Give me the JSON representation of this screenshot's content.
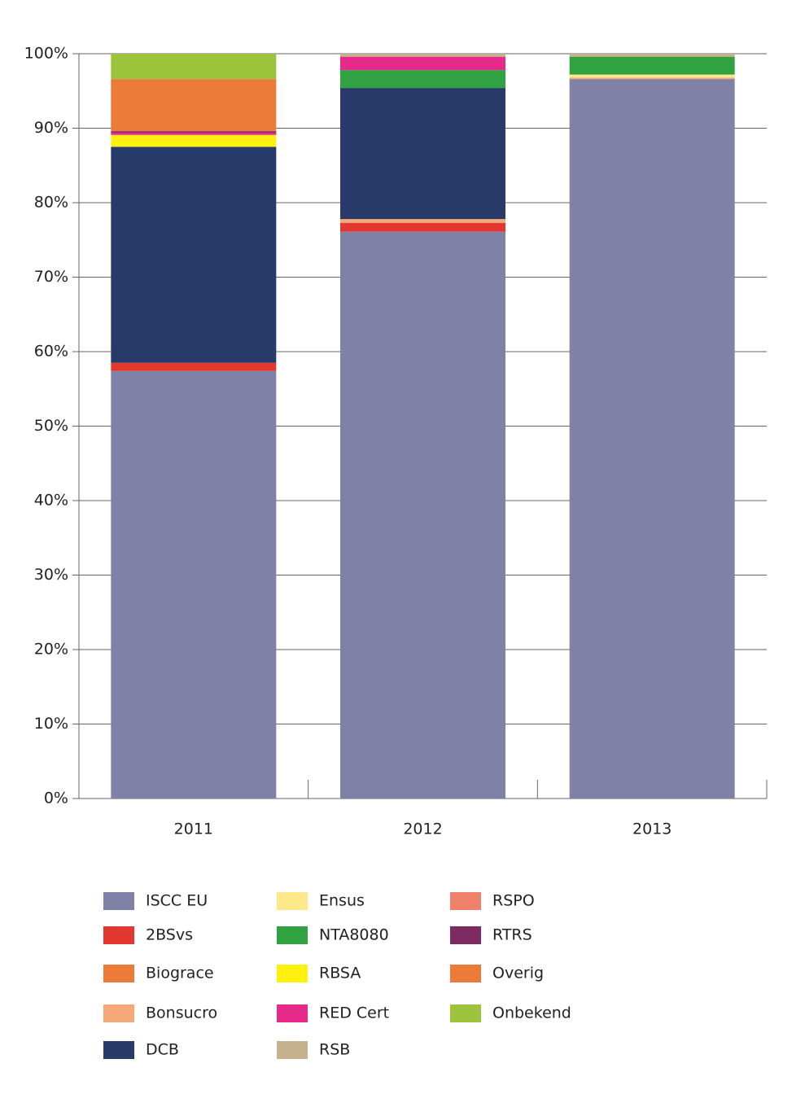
{
  "chart_data": {
    "type": "stacked_bar",
    "categories": [
      "2011",
      "2012",
      "2013"
    ],
    "ylim": [
      0,
      100
    ],
    "yticks": [
      {
        "value": 0,
        "label": "0%"
      },
      {
        "value": 10,
        "label": "10%"
      },
      {
        "value": 20,
        "label": "20%"
      },
      {
        "value": 30,
        "label": "30%"
      },
      {
        "value": 40,
        "label": "40%"
      },
      {
        "value": 50,
        "label": "50%"
      },
      {
        "value": 60,
        "label": "60%"
      },
      {
        "value": 70,
        "label": "70%"
      },
      {
        "value": 80,
        "label": "80%"
      },
      {
        "value": 90,
        "label": "90%"
      },
      {
        "value": 100,
        "label": "100%"
      }
    ],
    "grid": true,
    "series": [
      {
        "name": "ISCC EU",
        "color": "#7f81a6",
        "values": [
          57.4,
          76.1,
          96.6
        ]
      },
      {
        "name": "2BSvs",
        "color": "#e2382f",
        "values": [
          1.1,
          1.2,
          0
        ]
      },
      {
        "name": "Biograce",
        "color": "#ec7a38",
        "values": [
          0,
          0,
          0
        ]
      },
      {
        "name": "Bonsucro",
        "color": "#f6a878",
        "values": [
          0,
          0.5,
          0.2
        ]
      },
      {
        "name": "DCB",
        "color": "#283a6a",
        "values": [
          29.0,
          17.6,
          0
        ]
      },
      {
        "name": "Ensus",
        "color": "#fde98a",
        "values": [
          0,
          0,
          0.4
        ]
      },
      {
        "name": "NTA8080",
        "color": "#30a241",
        "values": [
          0,
          2.4,
          2.4
        ]
      },
      {
        "name": "RBSA",
        "color": "#fef010",
        "values": [
          1.6,
          0,
          0
        ]
      },
      {
        "name": "RED Cert",
        "color": "#e62a8a",
        "values": [
          0.3,
          1.8,
          0
        ]
      },
      {
        "name": "RSB",
        "color": "#c6b18f",
        "values": [
          0,
          0.4,
          0.4
        ]
      },
      {
        "name": "RSPO",
        "color": "#ee8169",
        "values": [
          0,
          0,
          0
        ]
      },
      {
        "name": "RTRS",
        "color": "#7d2b62",
        "values": [
          0.2,
          0,
          0
        ]
      },
      {
        "name": "Overig",
        "color": "#ec7a38",
        "values": [
          7.0,
          0,
          0
        ]
      },
      {
        "name": "Onbekend",
        "color": "#9bc43c",
        "values": [
          3.4,
          0,
          0
        ]
      }
    ]
  }
}
